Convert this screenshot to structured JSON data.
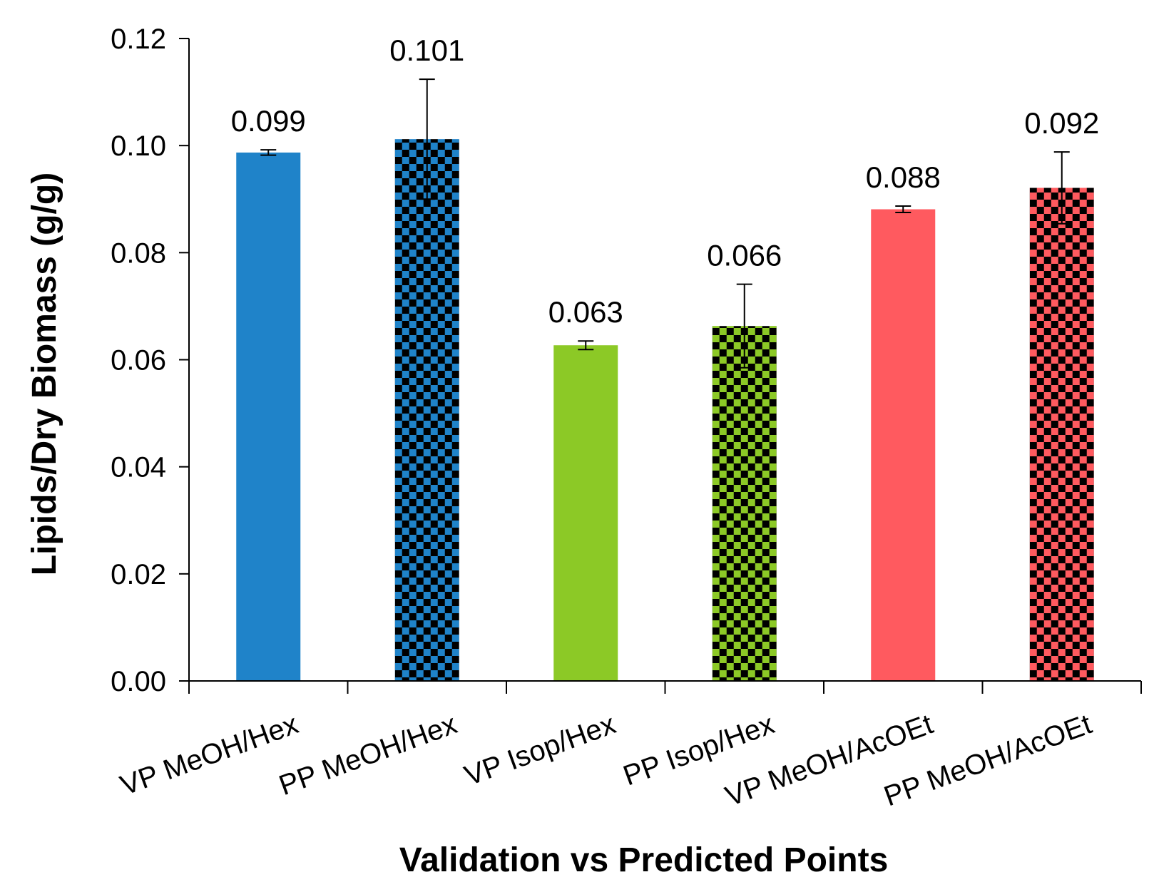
{
  "chart_data": {
    "type": "bar",
    "title": "",
    "xlabel": "Validation vs Predicted Points",
    "ylabel": "Lipids/Dry Biomass (g/g)",
    "ylim": [
      0,
      0.12
    ],
    "yticks": [
      "0.00",
      "0.02",
      "0.04",
      "0.06",
      "0.08",
      "0.10",
      "0.12"
    ],
    "grid": false,
    "legend": "none",
    "categories": [
      "VP MeOH/Hex",
      "PP MeOH/Hex",
      "VP Isop/Hex",
      "PP Isop/Hex",
      "VP MeOH/AcOEt",
      "PP MeOH/AcOEt"
    ],
    "values": [
      0.0987,
      0.1012,
      0.0627,
      0.0663,
      0.0881,
      0.0921
    ],
    "errors": [
      0.0005,
      0.0112,
      0.0008,
      0.0078,
      0.0006,
      0.0067
    ],
    "data_labels": [
      "0.099",
      "0.101",
      "0.063",
      "0.066",
      "0.088",
      "0.092"
    ],
    "colors": [
      "#1f83c9",
      "#1f83c9",
      "#8cc926",
      "#8cc926",
      "#ff5a5f",
      "#ff5a5f"
    ],
    "patterns": [
      "solid",
      "checker",
      "solid",
      "checker",
      "solid",
      "checker"
    ]
  }
}
